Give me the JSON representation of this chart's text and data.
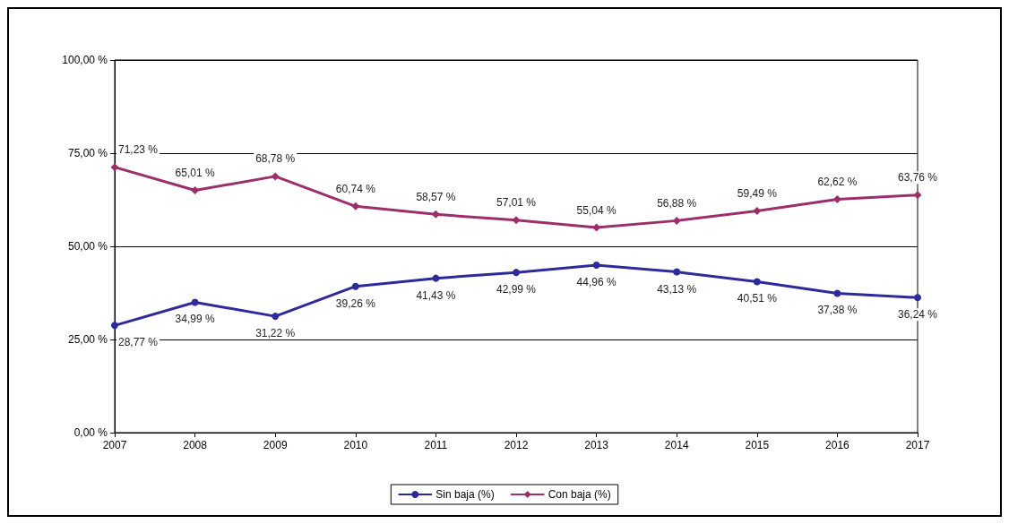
{
  "chart_data": {
    "type": "line",
    "categories": [
      "2007",
      "2008",
      "2009",
      "2010",
      "2011",
      "2012",
      "2013",
      "2014",
      "2015",
      "2016",
      "2017"
    ],
    "series": [
      {
        "name": "Sin baja (%)",
        "color": "#2e2a9c",
        "marker": "circle",
        "values": [
          28.77,
          34.99,
          31.22,
          39.26,
          41.43,
          42.99,
          44.96,
          43.13,
          40.51,
          37.38,
          36.24
        ],
        "value_labels": [
          "28,77 %",
          "34,99 %",
          "31,22 %",
          "39,26 %",
          "41,43 %",
          "42,99 %",
          "44,96 %",
          "43,13 %",
          "40,51 %",
          "37,38 %",
          "36,24 %"
        ]
      },
      {
        "name": "Con baja (%)",
        "color": "#9c2f6b",
        "marker": "diamond",
        "values": [
          71.23,
          65.01,
          68.78,
          60.74,
          58.57,
          57.01,
          55.04,
          56.88,
          59.49,
          62.62,
          63.76
        ],
        "value_labels": [
          "71,23 %",
          "65,01 %",
          "68,78 %",
          "60,74 %",
          "58,57 %",
          "57,01 %",
          "55,04 %",
          "56,88 %",
          "59,49 %",
          "62,62 %",
          "63,76 %"
        ]
      }
    ],
    "ylim": [
      0,
      100
    ],
    "yticks": [
      {
        "value": 0,
        "label": "0,00 %"
      },
      {
        "value": 25,
        "label": "25,00 %"
      },
      {
        "value": 50,
        "label": "50,00 %"
      },
      {
        "value": 75,
        "label": "75,00 %"
      },
      {
        "value": 100,
        "label": "100,00 %"
      }
    ],
    "grid": "y",
    "legend": "bottom",
    "line_style": "solid"
  }
}
